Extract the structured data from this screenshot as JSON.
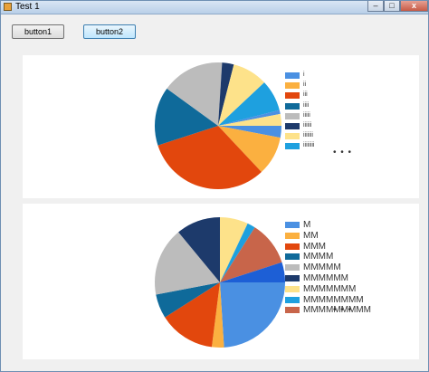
{
  "window": {
    "title": "Test 1",
    "controls": {
      "minimize": "–",
      "maximize": "□",
      "close": "x"
    }
  },
  "toolbar": {
    "button1_label": "button1",
    "button2_label": "button2"
  },
  "chart_data": [
    {
      "type": "pie",
      "slices": [
        {
          "label": "i",
          "value": 3,
          "color": "#4a90e2"
        },
        {
          "label": "ii",
          "value": 10,
          "color": "#fbb040"
        },
        {
          "label": "iii",
          "value": 32,
          "color": "#e2470d"
        },
        {
          "label": "iiii",
          "value": 15,
          "color": "#0f6a9a"
        },
        {
          "label": "iiiii",
          "value": 16,
          "color": "#bcbcbc"
        },
        {
          "label": "iiiiii",
          "value": 3,
          "color": "#1d3a6b"
        },
        {
          "label": "iiiiiii",
          "value": 9,
          "color": "#fde28a"
        },
        {
          "label": "iiiiiiii",
          "value": 8,
          "color": "#1ea0df"
        },
        {
          "label": "",
          "value": 1,
          "color": "#4a90e2"
        },
        {
          "label": "",
          "value": 3,
          "color": "#fde28a"
        }
      ],
      "more_indicator": "• • •"
    },
    {
      "type": "pie",
      "slices": [
        {
          "label": "M",
          "value": 24,
          "color": "#4a90e2"
        },
        {
          "label": "MM",
          "value": 3,
          "color": "#fbb040"
        },
        {
          "label": "MMM",
          "value": 14,
          "color": "#e2470d"
        },
        {
          "label": "MMMM",
          "value": 6,
          "color": "#0f6a9a"
        },
        {
          "label": "MMMMM",
          "value": 17,
          "color": "#bcbcbc"
        },
        {
          "label": "MMMMMM",
          "value": 11,
          "color": "#1d3a6b"
        },
        {
          "label": "MMMMMMM",
          "value": 7,
          "color": "#fde28a"
        },
        {
          "label": "MMMMMMMM",
          "value": 2,
          "color": "#1ea0df"
        },
        {
          "label": "MMMMMMMMM",
          "value": 11,
          "color": "#c8654a"
        },
        {
          "label": "",
          "value": 5,
          "color": "#1d5fd6"
        }
      ],
      "more_indicator": "• • •"
    }
  ]
}
